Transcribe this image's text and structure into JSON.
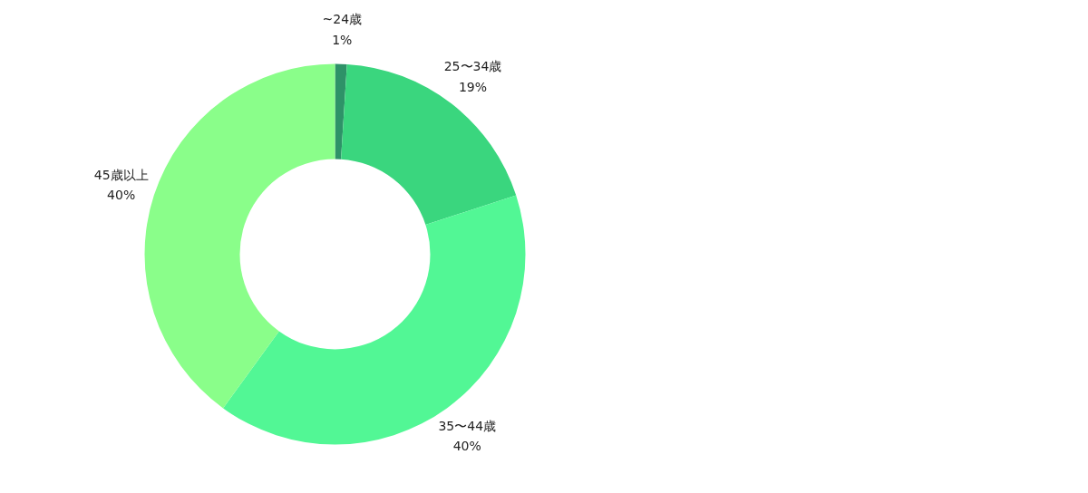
{
  "chart_data": {
    "type": "donut",
    "categories": [
      "~24歳",
      "25〜34歳",
      "35〜44歳",
      "45歳以上"
    ],
    "values": [
      1,
      19,
      40,
      40
    ],
    "value_labels": [
      "1%",
      "19%",
      "40%",
      "40%"
    ],
    "colors": [
      "#2e9268",
      "#3ad67e",
      "#52f795",
      "#8afe8a"
    ]
  }
}
